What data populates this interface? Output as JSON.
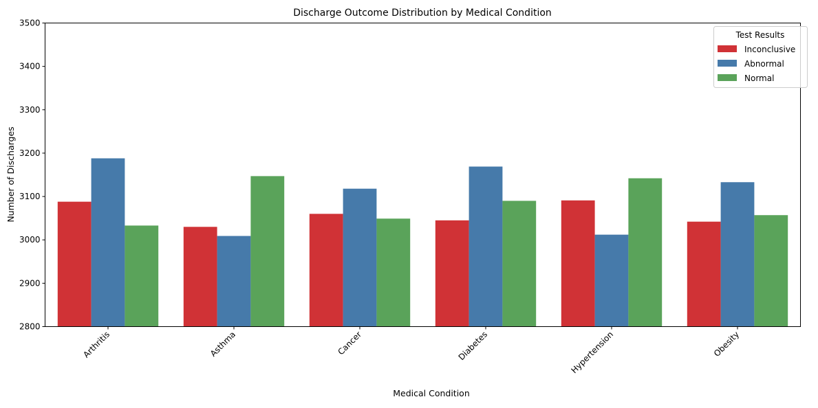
{
  "chart_data": {
    "type": "bar",
    "title": "Discharge Outcome Distribution by Medical Condition",
    "xlabel": "Medical Condition",
    "ylabel": "Number of Discharges",
    "ylim": [
      2800,
      3500
    ],
    "yticks": [
      2800,
      2900,
      3000,
      3100,
      3200,
      3300,
      3400,
      3500
    ],
    "ytick_labels": [
      "2800",
      "2900",
      "3000",
      "3100",
      "3200",
      "3300",
      "3400",
      "3500"
    ],
    "categories": [
      "Arthritis",
      "Asthma",
      "Cancer",
      "Diabetes",
      "Hypertension",
      "Obesity"
    ],
    "legend": {
      "title": "Test Results",
      "placement": "top-right"
    },
    "grid": false,
    "series": [
      {
        "name": "Inconclusive",
        "color": "#d03236",
        "values": [
          3088,
          3030,
          3060,
          3045,
          3091,
          3042
        ]
      },
      {
        "name": "Abnormal",
        "color": "#467aaa",
        "values": [
          3188,
          3009,
          3118,
          3169,
          3012,
          3133
        ]
      },
      {
        "name": "Normal",
        "color": "#5aa35a",
        "values": [
          3033,
          3147,
          3049,
          3090,
          3142,
          3057
        ]
      }
    ]
  }
}
